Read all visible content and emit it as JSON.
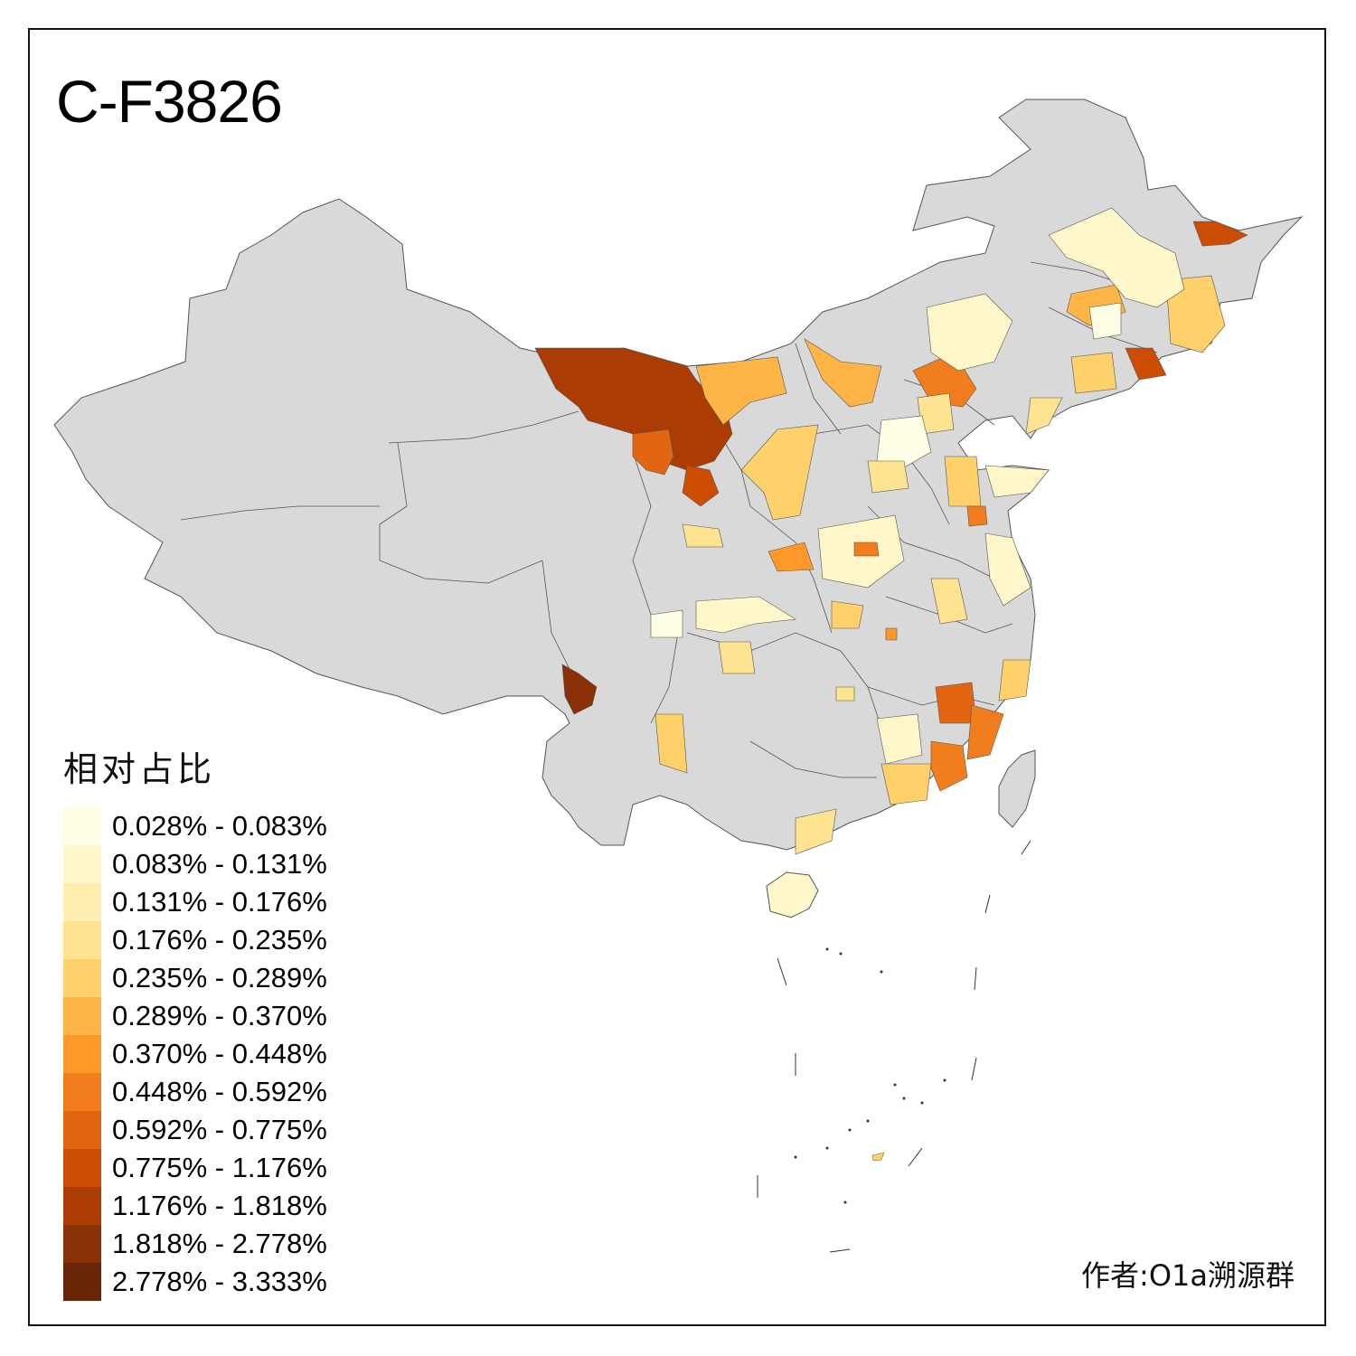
{
  "title": "C-F3826",
  "legend": {
    "title": "相对占比",
    "items": [
      {
        "label": "0.028% - 0.083%",
        "color": "#ffffe5"
      },
      {
        "label": "0.083% - 0.131%",
        "color": "#fff7c9"
      },
      {
        "label": "0.131% - 0.176%",
        "color": "#feeeb0"
      },
      {
        "label": "0.176% - 0.235%",
        "color": "#fee391"
      },
      {
        "label": "0.235% - 0.289%",
        "color": "#fed16a"
      },
      {
        "label": "0.289% - 0.370%",
        "color": "#feb546"
      },
      {
        "label": "0.370% - 0.448%",
        "color": "#fe9929"
      },
      {
        "label": "0.448% - 0.592%",
        "color": "#f17d1d"
      },
      {
        "label": "0.592% - 0.775%",
        "color": "#e26512"
      },
      {
        "label": "0.775% - 1.176%",
        "color": "#cc4c02"
      },
      {
        "label": "1.176% - 1.818%",
        "color": "#aa3c04"
      },
      {
        "label": "1.818% - 2.778%",
        "color": "#8a3006"
      },
      {
        "label": "2.778% - 3.333%",
        "color": "#662506"
      }
    ]
  },
  "author": "作者:O1a溯源群",
  "colors": {
    "base_region": "#d9d9d9",
    "border": "#555555",
    "frame": "#111111"
  }
}
